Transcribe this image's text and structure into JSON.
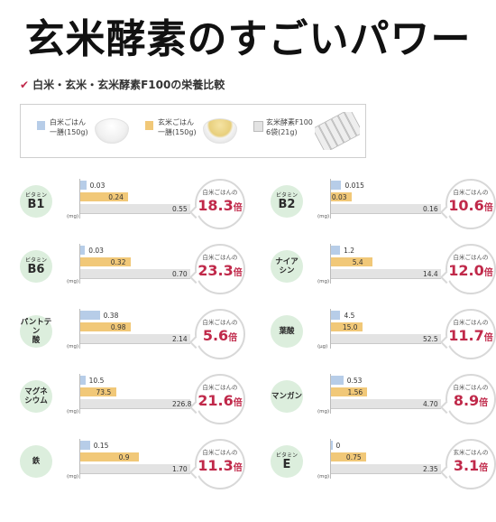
{
  "title": "玄米酵素のすごいパワー",
  "subtitle": "白米・玄米・玄米酵素F100の栄養比較",
  "legend": [
    {
      "line1": "白米ごはん",
      "line2": "一膳(150g)",
      "color": "#b7cde8"
    },
    {
      "line1": "玄米ごはん",
      "line2": "一膳(150g)",
      "color": "#f1c878"
    },
    {
      "line1": "玄米酵素F100",
      "line2": "6袋(21g)",
      "color": "#e3e3e3"
    }
  ],
  "chart_data": {
    "type": "bar",
    "series_names": [
      "白米ごはん 一膳(150g)",
      "玄米ごはん 一膳(150g)",
      "玄米酵素F100 6袋(21g)"
    ],
    "colors": [
      "#b7cde8",
      "#f1c878",
      "#e3e3e3"
    ],
    "panels": [
      {
        "small": "ビタミン",
        "big": "B1",
        "unit": "(mg)",
        "values": [
          0.03,
          0.24,
          0.55
        ],
        "labels": [
          "0.03",
          "0.24",
          "0.55"
        ],
        "badge_label": "白米ごはんの",
        "multiplier": "18.3",
        "suffix": "倍"
      },
      {
        "small": "ビタミン",
        "big": "B2",
        "unit": "(mg)",
        "values": [
          0.015,
          0.03,
          0.16
        ],
        "labels": [
          "0.015",
          "0.03",
          "0.16"
        ],
        "badge_label": "白米ごはんの",
        "multiplier": "10.6",
        "suffix": "倍"
      },
      {
        "small": "ビタミン",
        "big": "B6",
        "unit": "(mg)",
        "values": [
          0.03,
          0.32,
          0.7
        ],
        "labels": [
          "0.03",
          "0.32",
          "0.70"
        ],
        "badge_label": "白米ごはんの",
        "multiplier": "23.3",
        "suffix": "倍"
      },
      {
        "kana1": "ナイア",
        "kana2": "シン",
        "unit": "(mg)",
        "values": [
          1.2,
          5.4,
          14.4
        ],
        "labels": [
          "1.2",
          "5.4",
          "14.4"
        ],
        "badge_label": "白米ごはんの",
        "multiplier": "12.0",
        "suffix": "倍"
      },
      {
        "kana1": "パントテン",
        "kana2": "酸",
        "unit": "(mg)",
        "values": [
          0.38,
          0.98,
          2.14
        ],
        "labels": [
          "0.38",
          "0.98",
          "2.14"
        ],
        "badge_label": "白米ごはんの",
        "multiplier": "5.6",
        "suffix": "倍"
      },
      {
        "kana1": "葉酸",
        "kana2": "",
        "unit": "(μg)",
        "values": [
          4.5,
          15.0,
          52.5
        ],
        "labels": [
          "4.5",
          "15.0",
          "52.5"
        ],
        "badge_label": "白米ごはんの",
        "multiplier": "11.7",
        "suffix": "倍"
      },
      {
        "kana1": "マグネ",
        "kana2": "シウム",
        "unit": "(mg)",
        "values": [
          10.5,
          73.5,
          226.8
        ],
        "labels": [
          "10.5",
          "73.5",
          "226.8"
        ],
        "badge_label": "白米ごはんの",
        "multiplier": "21.6",
        "suffix": "倍"
      },
      {
        "kana1": "マンガン",
        "kana2": "",
        "unit": "(mg)",
        "values": [
          0.53,
          1.56,
          4.7
        ],
        "labels": [
          "0.53",
          "1.56",
          "4.70"
        ],
        "badge_label": "白米ごはんの",
        "multiplier": "8.9",
        "suffix": "倍"
      },
      {
        "kana1": "鉄",
        "kana2": "",
        "unit": "(mg)",
        "values": [
          0.15,
          0.9,
          1.7
        ],
        "labels": [
          "0.15",
          "0.9",
          "1.70"
        ],
        "badge_label": "白米ごはんの",
        "multiplier": "11.3",
        "suffix": "倍"
      },
      {
        "small": "ビタミン",
        "big": "E",
        "unit": "(mg)",
        "values": [
          0,
          0.75,
          2.35
        ],
        "labels": [
          "0",
          "0.75",
          "2.35"
        ],
        "badge_label": "玄米ごはんの",
        "multiplier": "3.1",
        "suffix": "倍"
      }
    ]
  }
}
